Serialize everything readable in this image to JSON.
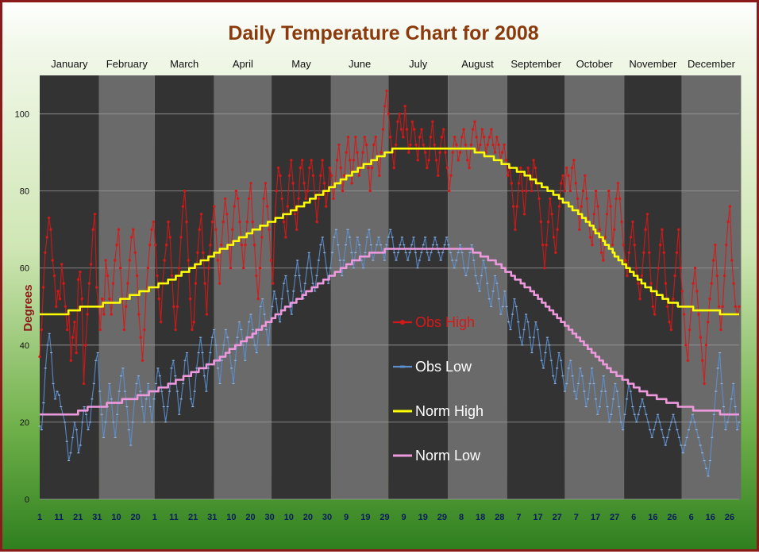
{
  "chart_data": {
    "type": "line",
    "title": "Daily Temperature Chart for 2008",
    "ylabel": "Degrees",
    "xlabel": "",
    "ylim": [
      0,
      110
    ],
    "yticks": [
      0,
      20,
      40,
      60,
      80,
      100
    ],
    "x_range_days": [
      1,
      366
    ],
    "months": [
      {
        "name": "January",
        "days": 31,
        "ticks": [
          "1",
          "11",
          "21",
          "31"
        ]
      },
      {
        "name": "February",
        "days": 29,
        "ticks": [
          "10",
          "20"
        ]
      },
      {
        "name": "March",
        "days": 31,
        "ticks": [
          "1",
          "11",
          "21",
          "31"
        ]
      },
      {
        "name": "April",
        "days": 30,
        "ticks": [
          "10",
          "20",
          "30"
        ]
      },
      {
        "name": "May",
        "days": 31,
        "ticks": [
          "10",
          "20",
          "30"
        ]
      },
      {
        "name": "June",
        "days": 30,
        "ticks": [
          "9",
          "19",
          "29"
        ]
      },
      {
        "name": "July",
        "days": 31,
        "ticks": [
          "9",
          "19",
          "29"
        ]
      },
      {
        "name": "August",
        "days": 31,
        "ticks": [
          "8",
          "18",
          "28"
        ]
      },
      {
        "name": "September",
        "days": 30,
        "ticks": [
          "7",
          "17",
          "27"
        ]
      },
      {
        "name": "October",
        "days": 31,
        "ticks": [
          "7",
          "17",
          "27"
        ]
      },
      {
        "name": "November",
        "days": 30,
        "ticks": [
          "6",
          "16",
          "26"
        ]
      },
      {
        "name": "December",
        "days": 31,
        "ticks": [
          "6",
          "16",
          "26"
        ]
      }
    ],
    "legend_position": "center",
    "series": [
      {
        "name": "Obs High",
        "color": "#d81818",
        "marker": "dot",
        "values": [
          37,
          44,
          55,
          64,
          68,
          73,
          70,
          62,
          58,
          50,
          54,
          52,
          61,
          56,
          50,
          44,
          48,
          36,
          42,
          46,
          38,
          57,
          59,
          52,
          30,
          40,
          48,
          56,
          61,
          70,
          74,
          55,
          50,
          44,
          52,
          48,
          62,
          58,
          52,
          48,
          56,
          62,
          66,
          70,
          60,
          52,
          44,
          50,
          56,
          62,
          68,
          70,
          64,
          58,
          48,
          42,
          36,
          44,
          54,
          60,
          66,
          70,
          72,
          66,
          58,
          52,
          46,
          56,
          62,
          66,
          72,
          68,
          58,
          50,
          44,
          50,
          60,
          68,
          76,
          80,
          72,
          62,
          52,
          44,
          46,
          56,
          64,
          70,
          74,
          64,
          56,
          48,
          60,
          66,
          72,
          76,
          70,
          62,
          56,
          66,
          72,
          78,
          74,
          66,
          60,
          70,
          76,
          80,
          78,
          72,
          66,
          60,
          66,
          72,
          78,
          82,
          72,
          66,
          58,
          52,
          60,
          68,
          78,
          82,
          76,
          70,
          62,
          56,
          72,
          80,
          86,
          84,
          78,
          72,
          68,
          76,
          84,
          88,
          82,
          74,
          70,
          78,
          86,
          88,
          82,
          78,
          80,
          86,
          88,
          84,
          78,
          72,
          78,
          84,
          88,
          82,
          76,
          80,
          86,
          84,
          78,
          82,
          88,
          92,
          86,
          80,
          84,
          90,
          94,
          88,
          82,
          88,
          94,
          90,
          84,
          86,
          90,
          94,
          92,
          86,
          80,
          86,
          92,
          94,
          88,
          84,
          90,
          96,
          102,
          106,
          100,
          94,
          90,
          86,
          92,
          98,
          100,
          96,
          94,
          102,
          96,
          90,
          92,
          98,
          96,
          92,
          88,
          94,
          96,
          92,
          90,
          86,
          88,
          94,
          98,
          92,
          88,
          84,
          90,
          94,
          96,
          90,
          86,
          80,
          84,
          90,
          94,
          92,
          88,
          90,
          94,
          96,
          92,
          88,
          86,
          92,
          96,
          98,
          94,
          90,
          92,
          96,
          94,
          90,
          92,
          94,
          96,
          92,
          90,
          94,
          92,
          88,
          90,
          92,
          88,
          84,
          86,
          82,
          76,
          70,
          76,
          82,
          86,
          80,
          74,
          80,
          86,
          84,
          80,
          88,
          86,
          82,
          78,
          72,
          66,
          60,
          66,
          72,
          78,
          74,
          68,
          64,
          70,
          76,
          82,
          84,
          80,
          86,
          84,
          80,
          86,
          88,
          82,
          78,
          70,
          76,
          80,
          84,
          78,
          72,
          68,
          66,
          74,
          80,
          76,
          70,
          64,
          62,
          68,
          74,
          80,
          76,
          66,
          70,
          78,
          82,
          78,
          72,
          66,
          62,
          58,
          64,
          68,
          72,
          66,
          60,
          56,
          52,
          58,
          64,
          70,
          74,
          64,
          56,
          50,
          48,
          54,
          60,
          66,
          70,
          64,
          56,
          50,
          46,
          44,
          52,
          58,
          64,
          70,
          60,
          54,
          48,
          40,
          36,
          44,
          50,
          56,
          60,
          54,
          48,
          42,
          36,
          30,
          40,
          46,
          52,
          56,
          62,
          66,
          58,
          50,
          44,
          50,
          58,
          66,
          72,
          76,
          62,
          56,
          50,
          48,
          50
        ]
      },
      {
        "name": "Obs Low",
        "color": "#5b8fd2",
        "marker": "dash",
        "values": [
          19,
          18,
          25,
          34,
          40,
          43,
          38,
          30,
          26,
          28,
          27,
          24,
          22,
          20,
          15,
          10,
          12,
          16,
          20,
          18,
          12,
          14,
          20,
          24,
          22,
          18,
          20,
          26,
          30,
          36,
          38,
          28,
          22,
          16,
          20,
          24,
          30,
          26,
          20,
          16,
          22,
          28,
          32,
          34,
          28,
          24,
          18,
          14,
          20,
          26,
          30,
          32,
          28,
          24,
          20,
          26,
          30,
          24,
          20,
          26,
          30,
          34,
          32,
          28,
          24,
          20,
          24,
          28,
          34,
          36,
          32,
          28,
          22,
          26,
          30,
          36,
          38,
          32,
          26,
          24,
          28,
          34,
          38,
          42,
          38,
          32,
          28,
          34,
          38,
          42,
          44,
          40,
          34,
          30,
          36,
          40,
          44,
          42,
          38,
          34,
          30,
          36,
          42,
          46,
          44,
          40,
          36,
          42,
          46,
          48,
          44,
          40,
          38,
          44,
          50,
          52,
          48,
          44,
          40,
          46,
          50,
          54,
          52,
          48,
          46,
          52,
          56,
          58,
          54,
          50,
          48,
          54,
          58,
          62,
          58,
          54,
          52,
          56,
          60,
          64,
          60,
          56,
          54,
          58,
          62,
          66,
          68,
          64,
          60,
          56,
          60,
          64,
          68,
          70,
          66,
          62,
          58,
          62,
          66,
          70,
          68,
          64,
          60,
          64,
          68,
          66,
          62,
          60,
          64,
          68,
          70,
          66,
          62,
          64,
          66,
          68,
          66,
          64,
          62,
          66,
          68,
          70,
          68,
          64,
          62,
          64,
          66,
          68,
          66,
          64,
          62,
          64,
          66,
          68,
          64,
          60,
          62,
          64,
          66,
          68,
          64,
          62,
          64,
          66,
          68,
          66,
          64,
          62,
          64,
          66,
          68,
          66,
          64,
          62,
          60,
          62,
          64,
          66,
          64,
          60,
          58,
          60,
          64,
          66,
          62,
          58,
          56,
          54,
          58,
          62,
          60,
          56,
          52,
          50,
          54,
          58,
          56,
          52,
          48,
          50,
          54,
          50,
          46,
          44,
          48,
          52,
          50,
          46,
          42,
          40,
          44,
          48,
          46,
          42,
          38,
          42,
          46,
          44,
          40,
          36,
          34,
          38,
          42,
          40,
          36,
          32,
          30,
          34,
          38,
          36,
          32,
          28,
          30,
          34,
          36,
          32,
          28,
          26,
          30,
          34,
          32,
          28,
          24,
          26,
          30,
          34,
          30,
          26,
          22,
          24,
          28,
          32,
          28,
          24,
          20,
          22,
          26,
          30,
          28,
          24,
          20,
          18,
          22,
          26,
          30,
          28,
          24,
          22,
          20,
          22,
          24,
          26,
          24,
          22,
          20,
          18,
          16,
          18,
          20,
          22,
          20,
          18,
          16,
          14,
          16,
          18,
          20,
          22,
          20,
          18,
          16,
          14,
          12,
          14,
          16,
          18,
          20,
          22,
          20,
          18,
          16,
          14,
          12,
          10,
          8,
          6,
          10,
          16,
          22,
          28,
          34,
          38,
          30,
          24,
          18,
          20,
          22,
          26,
          30,
          24,
          18,
          20
        ]
      },
      {
        "name": "Norm High",
        "color": "#ffff00",
        "marker": "none",
        "points": [
          [
            1,
            48
          ],
          [
            15,
            48
          ],
          [
            16,
            49
          ],
          [
            40,
            51
          ],
          [
            55,
            54
          ],
          [
            70,
            57
          ],
          [
            90,
            63
          ],
          [
            110,
            69
          ],
          [
            130,
            74
          ],
          [
            150,
            80
          ],
          [
            165,
            85
          ],
          [
            175,
            88
          ],
          [
            186,
            91
          ],
          [
            225,
            91
          ],
          [
            240,
            88
          ],
          [
            255,
            84
          ],
          [
            270,
            79
          ],
          [
            285,
            73
          ],
          [
            300,
            64
          ],
          [
            315,
            56
          ],
          [
            330,
            51
          ],
          [
            345,
            49
          ],
          [
            366,
            48
          ]
        ]
      },
      {
        "name": "Norm Low",
        "color": "#ee99dd",
        "marker": "none",
        "points": [
          [
            1,
            22
          ],
          [
            20,
            22
          ],
          [
            21,
            23
          ],
          [
            40,
            25
          ],
          [
            55,
            27
          ],
          [
            70,
            30
          ],
          [
            90,
            35
          ],
          [
            110,
            42
          ],
          [
            130,
            50
          ],
          [
            150,
            57
          ],
          [
            165,
            62
          ],
          [
            175,
            64
          ],
          [
            186,
            65
          ],
          [
            225,
            65
          ],
          [
            240,
            61
          ],
          [
            255,
            55
          ],
          [
            270,
            48
          ],
          [
            285,
            40
          ],
          [
            300,
            33
          ],
          [
            315,
            28
          ],
          [
            330,
            25
          ],
          [
            345,
            23
          ],
          [
            366,
            22
          ]
        ]
      }
    ]
  }
}
